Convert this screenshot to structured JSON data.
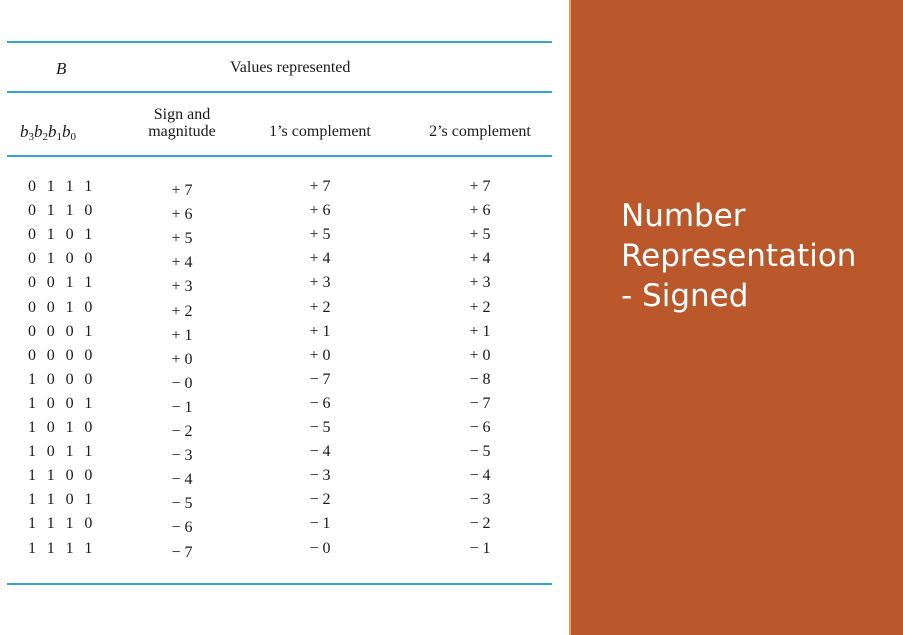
{
  "table": {
    "header": {
      "col_b": "B",
      "values_represented": "Values represented",
      "bits_label": [
        "b",
        "3",
        "b",
        "2",
        "b",
        "1",
        "b",
        "0"
      ],
      "sign_magnitude": [
        "Sign and",
        "magnitude"
      ],
      "ones_complement": "1’s complement",
      "twos_complement": "2’s complement"
    },
    "rows": [
      [
        "0 1 1 1",
        "+ 7",
        "+ 7",
        "+ 7"
      ],
      [
        "0 1 1 0",
        "+ 6",
        "+ 6",
        "+ 6"
      ],
      [
        "0 1 0 1",
        "+ 5",
        "+ 5",
        "+ 5"
      ],
      [
        "0 1 0 0",
        "+ 4",
        "+ 4",
        "+ 4"
      ],
      [
        "0 0 1 1",
        "+ 3",
        "+ 3",
        "+ 3"
      ],
      [
        "0 0 1 0",
        "+ 2",
        "+ 2",
        "+ 2"
      ],
      [
        "0 0 0 1",
        "+ 1",
        "+ 1",
        "+ 1"
      ],
      [
        "0 0 0 0",
        "+ 0",
        "+ 0",
        "+ 0"
      ],
      [
        "1 0 0 0",
        "− 0",
        "− 7",
        "− 8"
      ],
      [
        "1 0 0 1",
        "− 1",
        "− 6",
        "− 7"
      ],
      [
        "1 0 1 0",
        "− 2",
        "− 5",
        "− 6"
      ],
      [
        "1 0 1 1",
        "− 3",
        "− 4",
        "− 5"
      ],
      [
        "1 1 0 0",
        "− 4",
        "− 3",
        "− 4"
      ],
      [
        "1 1 0 1",
        "− 5",
        "− 2",
        "− 3"
      ],
      [
        "1 1 1 0",
        "− 6",
        "− 1",
        "− 2"
      ],
      [
        "1 1 1 1",
        "− 7",
        "− 0",
        "− 1"
      ]
    ]
  },
  "slide": {
    "title_lines": [
      "Number",
      "Representation",
      "- Signed"
    ],
    "panel_color": "#ba582c",
    "rule_color": "#3aa0d0"
  }
}
